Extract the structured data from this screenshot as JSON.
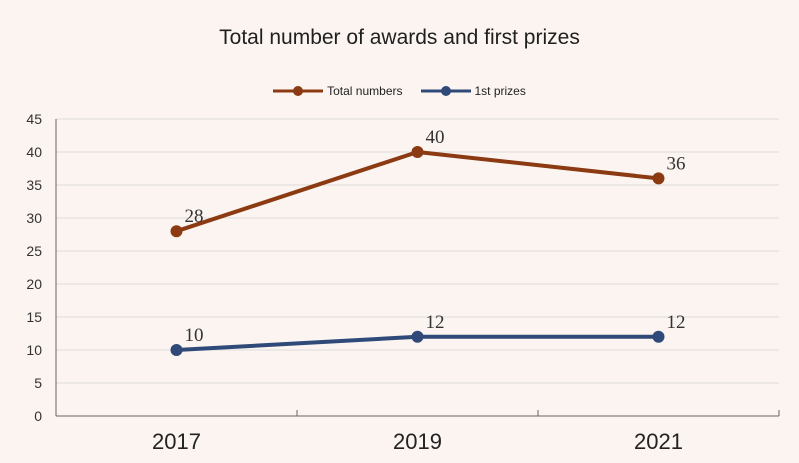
{
  "chart_data": {
    "type": "line",
    "title": "Total number of awards and first prizes",
    "xlabel": "",
    "ylabel": "",
    "categories": [
      "2017",
      "2019",
      "2021"
    ],
    "ylim": [
      0,
      45
    ],
    "yticks": [
      0,
      5,
      10,
      15,
      20,
      25,
      30,
      35,
      40,
      45
    ],
    "grid": true,
    "legend_position": "top-center",
    "series": [
      {
        "name": "Total numbers",
        "values": [
          28,
          40,
          36
        ],
        "labels": [
          "28",
          "40",
          "36"
        ],
        "color": "#8b3a12"
      },
      {
        "name": "1st prizes",
        "values": [
          10,
          12,
          12
        ],
        "labels": [
          "10",
          "12",
          "12"
        ],
        "color": "#2f4a78"
      }
    ]
  }
}
